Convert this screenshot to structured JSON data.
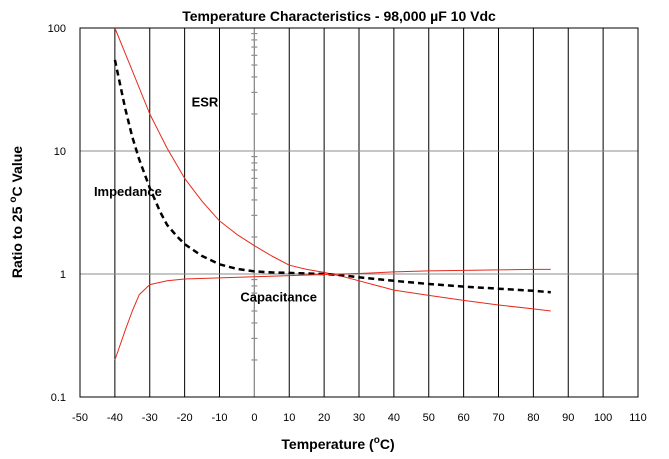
{
  "chart_data": {
    "type": "line",
    "title": "Temperature Characteristics  - 98,000 µF 10 Vdc",
    "xlabel_text": "Temperature (",
    "xlabel_sup": "o",
    "xlabel_end": "C)",
    "ylabel_text": "Ratio to 25 ",
    "ylabel_sup": "o",
    "ylabel_end": "C Value",
    "xlim": [
      -50,
      110
    ],
    "ylim": [
      0.1,
      100
    ],
    "yscale": "log",
    "grid": true,
    "x_ticks": [
      -50,
      -40,
      -30,
      -20,
      -10,
      0,
      10,
      20,
      30,
      40,
      50,
      60,
      70,
      80,
      90,
      100,
      110
    ],
    "y_ticks": [
      {
        "value": 0.1,
        "label": "0.1"
      },
      {
        "value": 1,
        "label": "1"
      },
      {
        "value": 10,
        "label": "10"
      },
      {
        "value": 100,
        "label": "100"
      }
    ],
    "series": [
      {
        "name": "ESR",
        "color": "#e8291c",
        "style": "solid",
        "label_pos": {
          "x": -18,
          "y": 23
        },
        "x": [
          -40,
          -35,
          -30,
          -25,
          -20,
          -15,
          -10,
          -5,
          0,
          5,
          10,
          15,
          20,
          25,
          30,
          40,
          50,
          60,
          70,
          80,
          85
        ],
        "y": [
          100,
          45,
          20,
          10.5,
          6,
          3.9,
          2.7,
          2.1,
          1.7,
          1.4,
          1.18,
          1.09,
          1.03,
          0.96,
          0.88,
          0.74,
          0.67,
          0.61,
          0.56,
          0.52,
          0.5
        ]
      },
      {
        "name": "Impedance",
        "color": "#000000",
        "style": "dashed",
        "label_pos": {
          "x": -46,
          "y": 4.3
        },
        "x": [
          -40,
          -37,
          -35,
          -33,
          -30,
          -27,
          -25,
          -22,
          -20,
          -15,
          -10,
          -5,
          0,
          5,
          10,
          15,
          20,
          25,
          30,
          40,
          50,
          60,
          70,
          80,
          85
        ],
        "y": [
          55,
          22,
          13,
          8.5,
          5,
          3.2,
          2.5,
          2,
          1.75,
          1.4,
          1.2,
          1.1,
          1.05,
          1.03,
          1.02,
          1.01,
          1.0,
          0.98,
          0.94,
          0.88,
          0.83,
          0.79,
          0.76,
          0.73,
          0.71
        ]
      },
      {
        "name": "Capacitance",
        "color": "#e8291c",
        "style": "solid",
        "label_pos": {
          "x": -4,
          "y": 0.6
        },
        "x": [
          -40,
          -37,
          -35,
          -33,
          -30,
          -25,
          -20,
          -10,
          0,
          10,
          20,
          30,
          40,
          50,
          60,
          70,
          80,
          85
        ],
        "y": [
          0.2,
          0.35,
          0.5,
          0.68,
          0.82,
          0.88,
          0.91,
          0.93,
          0.95,
          0.97,
          0.99,
          1.01,
          1.04,
          1.06,
          1.07,
          1.08,
          1.09,
          1.09
        ]
      }
    ]
  }
}
